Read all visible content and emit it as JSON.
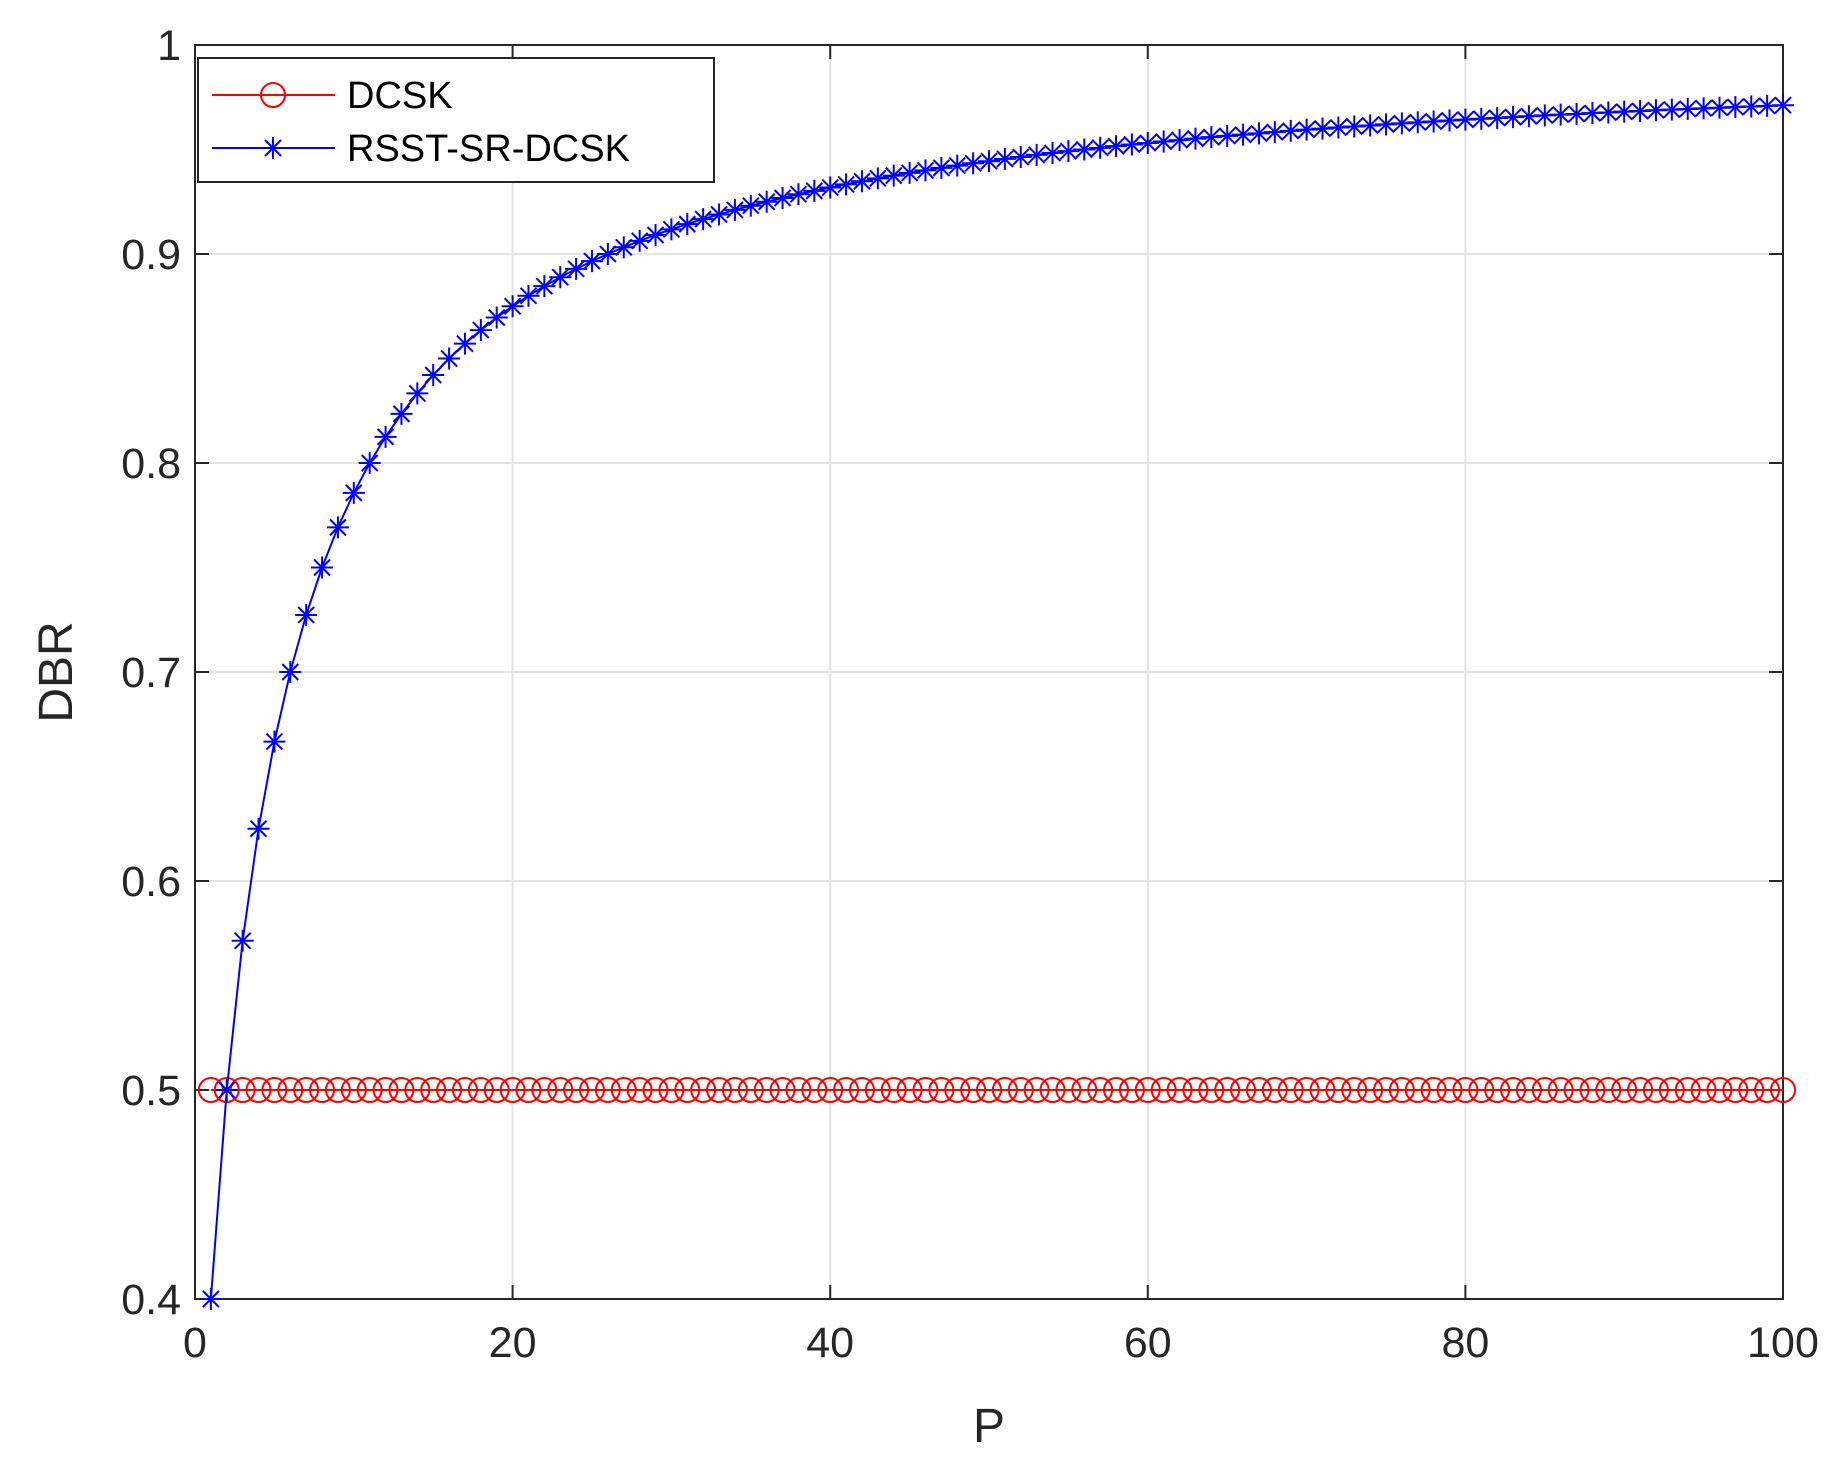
{
  "chart_data": {
    "type": "line",
    "title": "",
    "xlabel": "P",
    "ylabel": "DBR",
    "xlim": [
      0,
      100
    ],
    "ylim": [
      0.4,
      1
    ],
    "xticks": [
      0,
      20,
      40,
      60,
      80,
      100
    ],
    "yticks": [
      0.4,
      0.5,
      0.6,
      0.7,
      0.8,
      0.9,
      1
    ],
    "xtick_labels": [
      "0",
      "20",
      "40",
      "60",
      "80",
      "100"
    ],
    "ytick_labels": [
      "0.4",
      "0.5",
      "0.6",
      "0.7",
      "0.8",
      "0.9",
      "1"
    ],
    "grid": true,
    "legend_position": "top-left",
    "x": [
      1,
      2,
      3,
      4,
      5,
      6,
      7,
      8,
      9,
      10,
      11,
      12,
      13,
      14,
      15,
      16,
      17,
      18,
      19,
      20,
      21,
      22,
      23,
      24,
      25,
      26,
      27,
      28,
      29,
      30,
      31,
      32,
      33,
      34,
      35,
      36,
      37,
      38,
      39,
      40,
      41,
      42,
      43,
      44,
      45,
      46,
      47,
      48,
      49,
      50,
      51,
      52,
      53,
      54,
      55,
      56,
      57,
      58,
      59,
      60,
      61,
      62,
      63,
      64,
      65,
      66,
      67,
      68,
      69,
      70,
      71,
      72,
      73,
      74,
      75,
      76,
      77,
      78,
      79,
      80,
      81,
      82,
      83,
      84,
      85,
      86,
      87,
      88,
      89,
      90,
      91,
      92,
      93,
      94,
      95,
      96,
      97,
      98,
      99,
      100
    ],
    "series": [
      {
        "name": "DCSK",
        "color": "#ff0000",
        "marker": "circle",
        "values": [
          0.5,
          0.5,
          0.5,
          0.5,
          0.5,
          0.5,
          0.5,
          0.5,
          0.5,
          0.5,
          0.5,
          0.5,
          0.5,
          0.5,
          0.5,
          0.5,
          0.5,
          0.5,
          0.5,
          0.5,
          0.5,
          0.5,
          0.5,
          0.5,
          0.5,
          0.5,
          0.5,
          0.5,
          0.5,
          0.5,
          0.5,
          0.5,
          0.5,
          0.5,
          0.5,
          0.5,
          0.5,
          0.5,
          0.5,
          0.5,
          0.5,
          0.5,
          0.5,
          0.5,
          0.5,
          0.5,
          0.5,
          0.5,
          0.5,
          0.5,
          0.5,
          0.5,
          0.5,
          0.5,
          0.5,
          0.5,
          0.5,
          0.5,
          0.5,
          0.5,
          0.5,
          0.5,
          0.5,
          0.5,
          0.5,
          0.5,
          0.5,
          0.5,
          0.5,
          0.5,
          0.5,
          0.5,
          0.5,
          0.5,
          0.5,
          0.5,
          0.5,
          0.5,
          0.5,
          0.5,
          0.5,
          0.5,
          0.5,
          0.5,
          0.5,
          0.5,
          0.5,
          0.5,
          0.5,
          0.5,
          0.5,
          0.5,
          0.5,
          0.5,
          0.5,
          0.5,
          0.5,
          0.5,
          0.5,
          0.5
        ]
      },
      {
        "name": "RSST-SR-DCSK",
        "color": "#0000ff",
        "marker": "asterisk",
        "values": [
          0.4,
          0.5,
          0.5714,
          0.625,
          0.6667,
          0.7,
          0.7273,
          0.75,
          0.7692,
          0.7857,
          0.8,
          0.8125,
          0.8235,
          0.8333,
          0.8421,
          0.85,
          0.8571,
          0.8636,
          0.8696,
          0.875,
          0.88,
          0.8846,
          0.8889,
          0.8929,
          0.8966,
          0.9,
          0.9032,
          0.9063,
          0.9091,
          0.9118,
          0.9143,
          0.9167,
          0.9189,
          0.9211,
          0.9231,
          0.925,
          0.9268,
          0.9286,
          0.9302,
          0.9318,
          0.9333,
          0.9348,
          0.9362,
          0.9375,
          0.9388,
          0.94,
          0.9412,
          0.9423,
          0.9434,
          0.9444,
          0.9455,
          0.9464,
          0.9474,
          0.9483,
          0.9492,
          0.95,
          0.9508,
          0.9516,
          0.9524,
          0.9531,
          0.9538,
          0.9545,
          0.9552,
          0.9559,
          0.9565,
          0.9571,
          0.9577,
          0.9583,
          0.9589,
          0.9595,
          0.96,
          0.9605,
          0.961,
          0.9615,
          0.962,
          0.9625,
          0.963,
          0.9634,
          0.9639,
          0.9643,
          0.9647,
          0.9651,
          0.9655,
          0.9659,
          0.9663,
          0.9667,
          0.967,
          0.9674,
          0.9677,
          0.9681,
          0.9684,
          0.9688,
          0.9691,
          0.9694,
          0.9697,
          0.97,
          0.9703,
          0.9706,
          0.9709,
          0.9712
        ]
      }
    ]
  }
}
